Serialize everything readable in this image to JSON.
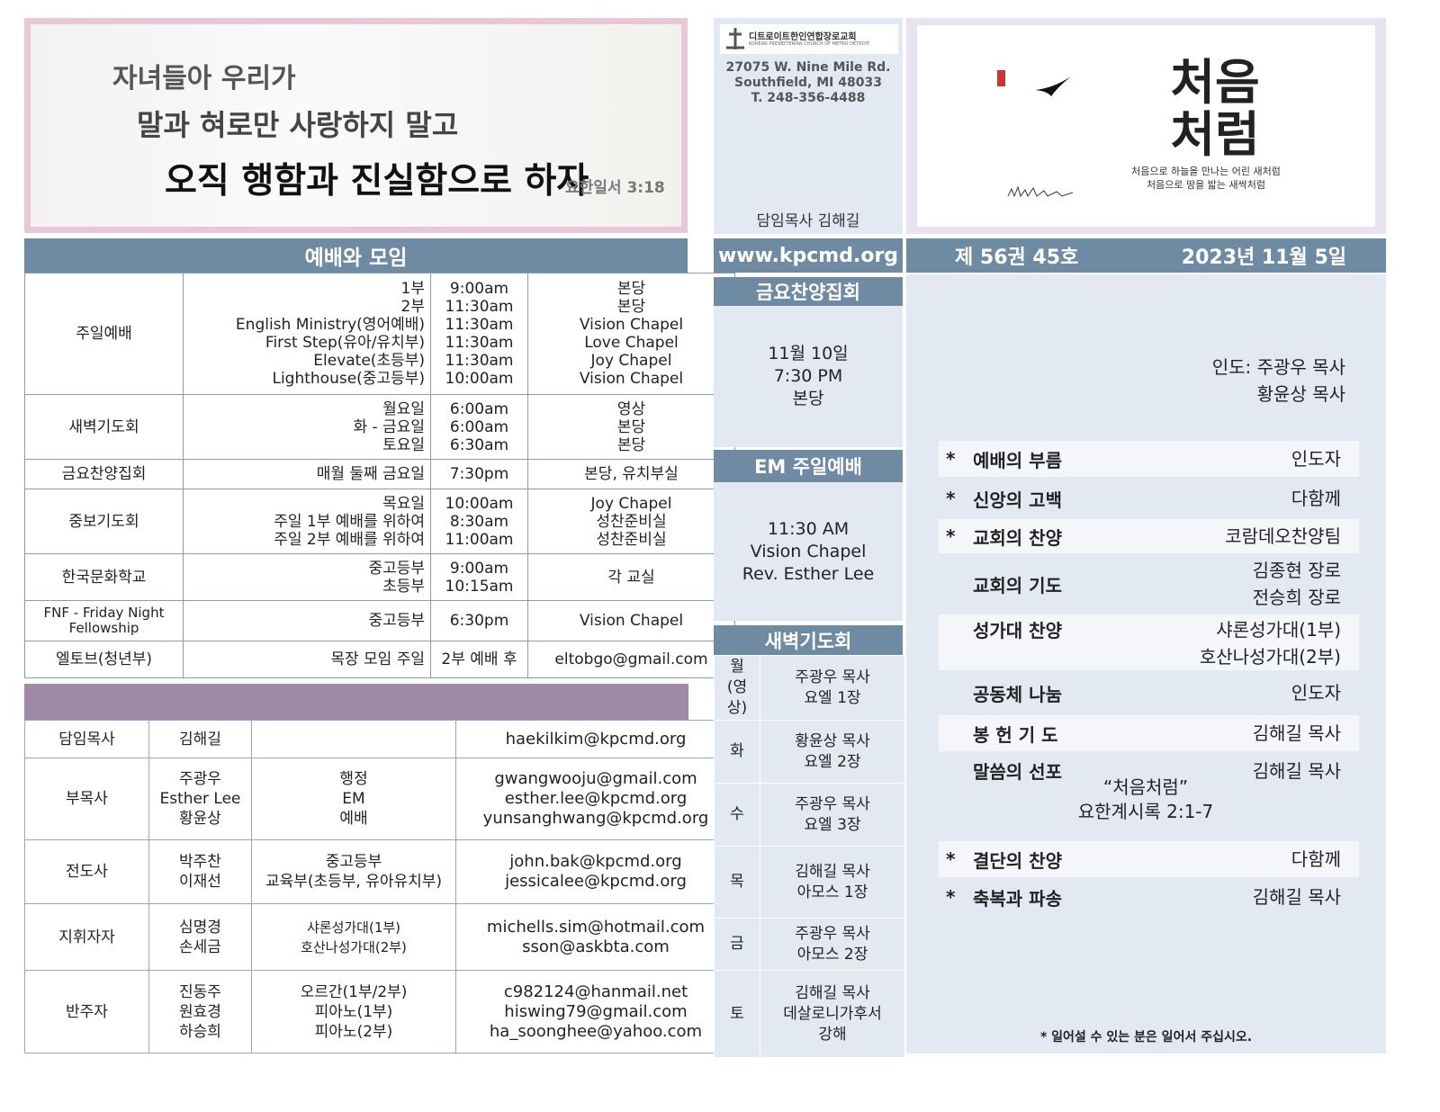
{
  "banner": {
    "lines": [
      "자녀들아 우리가",
      "말과 혀로만 사랑하지 말고",
      "오직 행함과 진실함으로 하자"
    ],
    "reference": "요한일서 3:18"
  },
  "worship": {
    "title": "예배와 모임",
    "rows": [
      {
        "name": "주일예배",
        "items": [
          [
            "1부",
            "9:00am",
            "본당"
          ],
          [
            "2부",
            "11:30am",
            "본당"
          ],
          [
            "English Ministry(영어예배)",
            "11:30am",
            "Vision Chapel"
          ],
          [
            "First Step(유아/유치부)",
            "11:30am",
            "Love Chapel"
          ],
          [
            "Elevate(초등부)",
            "11:30am",
            "Joy Chapel"
          ],
          [
            "Lighthouse(중고등부)",
            "10:00am",
            "Vision Chapel"
          ]
        ]
      },
      {
        "name": "새벽기도회",
        "items": [
          [
            "월요일",
            "6:00am",
            "영상"
          ],
          [
            "화 - 금요일",
            "6:00am",
            "본당"
          ],
          [
            "토요일",
            "6:30am",
            "본당"
          ]
        ]
      },
      {
        "name": "금요찬양집회",
        "items": [
          [
            "매월 둘째 금요일",
            "7:30pm",
            "본당, 유치부실"
          ]
        ]
      },
      {
        "name": "중보기도회",
        "items": [
          [
            "목요일",
            "10:00am",
            "Joy Chapel"
          ],
          [
            "주일 1부 예배를 위하여",
            "8:30am",
            "성찬준비실"
          ],
          [
            "주일 2부 예배를 위하여",
            "11:00am",
            "성찬준비실"
          ]
        ]
      },
      {
        "name": "한국문화학교",
        "items": [
          [
            "중고등부",
            "9:00am",
            "각 교실"
          ],
          [
            "초등부",
            "10:15am"
          ]
        ]
      },
      {
        "name": "FNF - Friday Night Fellowship",
        "items": [
          [
            "중고등부",
            "6:30pm",
            "Vision Chapel"
          ]
        ]
      },
      {
        "name": "엘토브(청년부)",
        "items": [
          [
            "목장 모임 주일",
            "2부 예배 후",
            "eltobgo@gmail.com"
          ]
        ]
      }
    ]
  },
  "staff": {
    "rows": [
      {
        "role": "담임목사",
        "names": [
          "김해길"
        ],
        "emails": [
          "haekilkim@kpcmd.org"
        ]
      },
      {
        "role": "부목사",
        "names": [
          "주광우",
          "Esther Lee",
          "황윤상"
        ],
        "duties": [
          "행정",
          "EM",
          "예배"
        ],
        "emails": [
          "gwangwooju@gmail.com",
          "esther.lee@kpcmd.org",
          "yunsanghwang@kpcmd.org"
        ]
      },
      {
        "role": "전도사",
        "names": [
          "박주찬",
          "이재선"
        ],
        "duties": [
          "중고등부",
          "교육부(초등부, 유아유치부)"
        ],
        "emails": [
          "john.bak@kpcmd.org",
          "jessicalee@kpcmd.org"
        ]
      },
      {
        "role": "지휘자자",
        "names": [
          "심명경",
          "손세금"
        ],
        "duties": [
          "샤론성가대(1부)",
          "호산나성가대(2부)"
        ],
        "emails": [
          "michells.sim@hotmail.com",
          "sson@askbta.com"
        ]
      },
      {
        "role": "반주자",
        "names": [
          "진동주",
          "원효경",
          "하승희"
        ],
        "duties": [
          "오르간(1부/2부)",
          "피아노(1부)",
          "피아노(2부)"
        ],
        "emails": [
          "c982124@hanmail.net",
          "hiswing79@gmail.com",
          "ha_soonghee@yahoo.com"
        ]
      }
    ]
  },
  "church": {
    "name": "디트로이트한인연합장로교회",
    "name_en": "KOREAN PRESBYTERIAN CHURCH OF METRO DETROIT",
    "address": [
      "27075 W. Nine Mile Rd.",
      "Southfield, MI 48033",
      "T. 248-356-4488"
    ],
    "pastor": "담임목사 김해길",
    "website": "www.kpcmd.org"
  },
  "friday": {
    "title": "금요찬양집회",
    "lines": [
      "11월 10일",
      "7:30 PM",
      "본당"
    ]
  },
  "em": {
    "title": "EM 주일예배",
    "lines": [
      "11:30 AM",
      "Vision Chapel",
      "Rev. Esther Lee"
    ]
  },
  "dawn": {
    "title": "새벽기도회",
    "rows": [
      {
        "day": [
          "월",
          "(영상)"
        ],
        "text": [
          "주광우 목사",
          "요엘 1장"
        ]
      },
      {
        "day": [
          "화"
        ],
        "text": [
          "황윤상 목사",
          "요엘 2장"
        ]
      },
      {
        "day": [
          "수"
        ],
        "text": [
          "주광우 목사",
          "요엘 3장"
        ]
      },
      {
        "day": [
          "목"
        ],
        "text": [
          "김해길 목사",
          "아모스 1장"
        ]
      },
      {
        "day": [
          "금"
        ],
        "text": [
          "주광우 목사",
          "아모스 2장"
        ]
      },
      {
        "day": [
          "토"
        ],
        "text": [
          "김해길 목사",
          "데살로니가후서",
          "강해"
        ]
      }
    ]
  },
  "cover": {
    "title": [
      "처음",
      "처럼"
    ],
    "caption": [
      "처음으로 하늘을 만나는 어린 새처럼",
      "처음으로 땅을 밟는 새싹처럼"
    ]
  },
  "issue": {
    "volume": "제 56권 45호",
    "date": "2023년 11월 5일"
  },
  "order": {
    "leaders": [
      "인도: 주광우 목사",
      "황윤상 목사"
    ],
    "items": [
      {
        "star": "*",
        "title": "예배의 부름",
        "right": [
          "인도자"
        ]
      },
      {
        "star": "*",
        "title": "신앙의 고백",
        "right": [
          "다함께"
        ]
      },
      {
        "star": "*",
        "title": "교회의 찬양",
        "right": [
          "코람데오찬양팀"
        ]
      },
      {
        "title": "교회의 기도",
        "right": [
          "김종현 장로",
          "전승희 장로"
        ]
      },
      {
        "title": "성가대 찬양",
        "right": [
          "샤론성가대(1부)",
          "호산나성가대(2부)"
        ]
      },
      {
        "title": "공동체 나눔",
        "right": [
          "인도자"
        ]
      },
      {
        "title": "봉 헌 기 도",
        "right": [
          "김해길 목사"
        ]
      },
      {
        "title": "말씀의 선포",
        "right": [
          "김해길 목사"
        ],
        "center": [
          "“처음처럼”",
          "요한계시록 2:1-7"
        ]
      },
      {
        "star": "*",
        "title": "결단의 찬양",
        "right": [
          "다함께"
        ]
      },
      {
        "star": "*",
        "title": "축복과 파송",
        "right": [
          "김해길 목사"
        ]
      }
    ],
    "note": "* 일어설 수 있는 분은 일어서 주십시오."
  }
}
